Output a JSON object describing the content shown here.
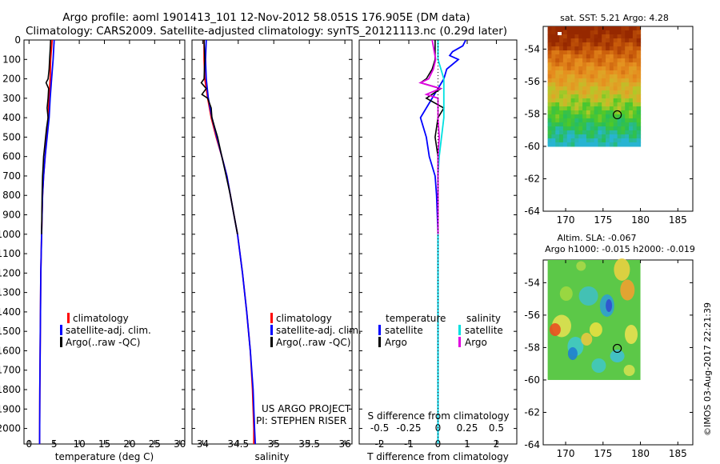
{
  "header": {
    "line1": "Argo profile: aoml 1901413_101 12-Nov-2012 58.051S 176.905E (DM data)",
    "line2": "Climatology: CARS2009. Satellite-adjusted climatology: synTS_20121113.nc (0.29d later)"
  },
  "legend_panels": {
    "climatology": "climatology",
    "satellite_clim": "satellite-adj. clim.",
    "argo": "Argo(..raw -QC)"
  },
  "legend_diff": {
    "temperature": "temperature",
    "salinity": "salinity",
    "satellite": "satellite",
    "argo": "Argo"
  },
  "project_line1": "US ARGO PROJECT",
  "project_line2": "PI: STEPHEN RISER",
  "diff_title": "S difference from climatology",
  "watermark": "©IMOS 03-Aug-2017 22:21:39",
  "colors": {
    "climatology": "#ff0000",
    "satellite": "#0000ff",
    "argo": "#000000",
    "sal_satellite": "#00e0e0",
    "sal_argo": "#e000e0"
  },
  "maps": {
    "sst": {
      "title": "sat. SST: 5.21  Argo: 4.28",
      "float_lon": 176.905,
      "float_lat": -58.051
    },
    "sla": {
      "title1": "Altim. SLA: -0.067",
      "title2": "Argo h1000: -0.015 h2000: -0.019",
      "float_lon": 176.905,
      "float_lat": -58.051
    },
    "xticks": [
      170,
      175,
      180,
      185
    ],
    "yticks": [
      -54,
      -56,
      -58,
      -60,
      -62,
      -64
    ],
    "xlim": [
      167,
      187
    ],
    "ylim": [
      -64,
      -52.6
    ]
  },
  "chart_data": [
    {
      "type": "line",
      "name": "temperature profile",
      "xlabel": "temperature (deg C)",
      "ylabel": "",
      "xlim": [
        -1,
        31
      ],
      "ylim": [
        2080,
        0
      ],
      "xticks": [
        0,
        5,
        10,
        15,
        20,
        25,
        30
      ],
      "yticks": [
        0,
        100,
        200,
        300,
        400,
        500,
        600,
        700,
        800,
        900,
        1000,
        1100,
        1200,
        1300,
        1400,
        1500,
        1600,
        1700,
        1800,
        1900,
        2000
      ],
      "series": [
        {
          "name": "climatology",
          "color": "#ff0000",
          "depth": [
            0,
            100,
            200,
            300,
            400,
            500,
            600,
            700,
            800,
            1000,
            1200,
            1500,
            1800,
            2080
          ],
          "values": [
            4.6,
            4.3,
            4.2,
            4.0,
            3.8,
            3.5,
            3.2,
            2.9,
            2.7,
            2.5,
            2.35,
            2.25,
            2.15,
            2.1
          ]
        },
        {
          "name": "satellite-adj. clim.",
          "color": "#0000ff",
          "depth": [
            0,
            100,
            200,
            300,
            400,
            500,
            600,
            700,
            800,
            1000,
            1200,
            1500,
            1800,
            2080
          ],
          "values": [
            5.0,
            4.8,
            4.5,
            4.2,
            4.0,
            3.6,
            3.2,
            2.9,
            2.7,
            2.5,
            2.35,
            2.25,
            2.15,
            2.1
          ]
        },
        {
          "name": "Argo(..raw -QC)",
          "color": "#000000",
          "depth": [
            0,
            50,
            100,
            150,
            200,
            220,
            250,
            300,
            350,
            400,
            450,
            500,
            550,
            600,
            650,
            700,
            800,
            1000
          ],
          "values": [
            4.3,
            4.2,
            4.1,
            4.0,
            3.8,
            3.4,
            3.9,
            3.8,
            3.6,
            3.8,
            3.5,
            3.3,
            3.1,
            2.9,
            2.8,
            2.7,
            2.6,
            2.5
          ]
        }
      ]
    },
    {
      "type": "line",
      "name": "salinity profile",
      "xlabel": "salinity",
      "ylabel": "",
      "xlim": [
        33.85,
        36.1
      ],
      "ylim": [
        2080,
        0
      ],
      "xticks": [
        34,
        34.5,
        35,
        35.5,
        36
      ],
      "series": [
        {
          "name": "climatology",
          "color": "#ff0000",
          "depth": [
            0,
            100,
            200,
            300,
            400,
            500,
            600,
            700,
            800,
            900,
            1000,
            1200,
            1400,
            1600,
            1800,
            2000,
            2080
          ],
          "values": [
            34.02,
            34.02,
            34.03,
            34.07,
            34.12,
            34.19,
            34.27,
            34.34,
            34.39,
            34.44,
            34.49,
            34.56,
            34.62,
            34.67,
            34.7,
            34.72,
            34.72
          ]
        },
        {
          "name": "satellite-adj. clim.",
          "color": "#0000ff",
          "depth": [
            0,
            100,
            200,
            300,
            400,
            500,
            600,
            700,
            800,
            900,
            1000,
            1200,
            1400,
            1600,
            1800,
            2000,
            2080
          ],
          "values": [
            34.05,
            34.04,
            34.05,
            34.08,
            34.13,
            34.2,
            34.27,
            34.34,
            34.39,
            34.44,
            34.49,
            34.56,
            34.62,
            34.67,
            34.71,
            34.73,
            34.74
          ]
        },
        {
          "name": "Argo(..raw -QC)",
          "color": "#000000",
          "depth": [
            0,
            100,
            200,
            220,
            250,
            280,
            300,
            350,
            400,
            450,
            500,
            600,
            700,
            800,
            900,
            1000
          ],
          "values": [
            34.02,
            34.03,
            34.02,
            33.98,
            34.05,
            33.99,
            34.07,
            34.12,
            34.13,
            34.17,
            34.21,
            34.27,
            34.33,
            34.39,
            34.44,
            34.49
          ]
        }
      ]
    },
    {
      "type": "line",
      "name": "difference from climatology",
      "xlabel": "T difference from climatology",
      "x2label": "S difference from climatology",
      "ylabel": "",
      "xlim": [
        -2.7,
        2.7
      ],
      "ylim": [
        2080,
        0
      ],
      "xticks_t": [
        -2,
        -1,
        0,
        1,
        2
      ],
      "xticks_s": [
        -0.5,
        -0.25,
        0,
        0.25,
        0.5
      ],
      "series": [
        {
          "name": "temperature satellite",
          "color": "#0000ff",
          "depth": [
            0,
            30,
            60,
            80,
            100,
            150,
            200,
            300,
            400,
            500,
            600,
            700,
            800,
            1000,
            1200,
            1500,
            2080
          ],
          "values": [
            0.95,
            0.85,
            0.5,
            0.4,
            0.7,
            0.3,
            0.2,
            -0.2,
            -0.6,
            -0.4,
            -0.3,
            -0.1,
            -0.05,
            0,
            0,
            0,
            0
          ]
        },
        {
          "name": "temperature Argo",
          "color": "#000000",
          "depth": [
            0,
            100,
            150,
            200,
            220,
            250,
            300,
            350,
            400,
            500,
            600,
            700,
            800,
            1000
          ],
          "values": [
            -0.1,
            -0.1,
            -0.2,
            -0.4,
            -0.6,
            0.1,
            -0.4,
            0.2,
            0,
            -0.1,
            0,
            0,
            0,
            0
          ]
        },
        {
          "name": "salinity satellite",
          "color": "#00e0e0",
          "depth": [
            0,
            100,
            200,
            300,
            400,
            500,
            600,
            700,
            800,
            1000,
            1500,
            2080
          ],
          "values": [
            0,
            0,
            0.05,
            0.05,
            0.05,
            0.03,
            0.01,
            0,
            0,
            0,
            0,
            0
          ]
        },
        {
          "name": "salinity Argo",
          "color": "#e000e0",
          "depth": [
            0,
            100,
            150,
            200,
            220,
            250,
            280,
            300,
            400,
            500,
            600,
            700,
            800,
            1000
          ],
          "values": [
            -0.05,
            -0.02,
            -0.04,
            -0.08,
            -0.15,
            0.02,
            -0.1,
            0,
            0,
            0.01,
            0,
            0,
            0,
            0
          ]
        }
      ]
    }
  ]
}
